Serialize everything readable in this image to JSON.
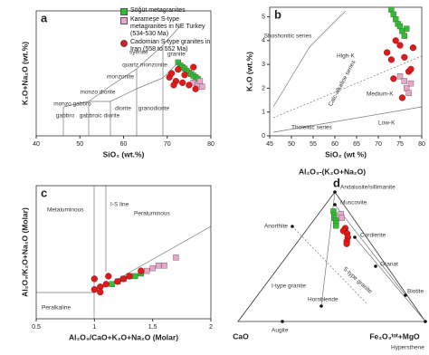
{
  "chart_data": [
    {
      "type": "scatter",
      "panel_label": "a",
      "x_label": "SiO₂ (wt.%)",
      "y_label": "K₂O+Na₂O (wt.%)",
      "xlim": [
        40,
        80
      ],
      "xticks": [
        40,
        50,
        60,
        70,
        80
      ],
      "ylim": [
        0,
        16
      ],
      "legend": "upper right",
      "annotations": [
        "granite",
        "syenite",
        "quartz monzonite",
        "monzonite",
        "monzo diorite",
        "monzo gabbro",
        "gabbroic diorite",
        "gabbro",
        "diorite",
        "granodiorite"
      ],
      "series": [
        {
          "name": "Söğüt metagranites",
          "color": "#2fbf2f",
          "marker": "square",
          "x": [
            72.5,
            73,
            73.5,
            74,
            74.5,
            75,
            75.5,
            76,
            76.5,
            77
          ],
          "values": [
            9.4,
            9.0,
            8.8,
            8.6,
            8.3,
            8.1,
            7.9,
            7.7,
            7.5,
            7.3
          ]
        },
        {
          "name": "Karameşe S-type metagranites in NE Turkey (534-530 Ma)",
          "color": "#eaa6cc",
          "marker": "square",
          "x": [
            76,
            77,
            77.5,
            78
          ],
          "values": [
            6.8,
            6.6,
            7.0,
            6.3
          ]
        },
        {
          "name": "Cadomian S-type granites in Iran (558 to 552 Ma)",
          "color": "#e01a1a",
          "marker": "circle",
          "x": [
            70.5,
            71,
            72,
            72.5,
            73.5,
            74,
            75,
            76,
            76.5,
            71.5
          ],
          "values": [
            7.5,
            8.0,
            7.0,
            8.5,
            6.8,
            7.8,
            6.5,
            8.8,
            6.0,
            6.5
          ]
        }
      ]
    },
    {
      "type": "scatter",
      "panel_label": "b",
      "x_label": "SiO₂ (wt %)",
      "y_label": "K₂O (wt.%)",
      "xlim": [
        45,
        80
      ],
      "xticks": [
        45,
        50,
        55,
        60,
        65,
        70,
        75,
        80
      ],
      "ylim": [
        0,
        5.4
      ],
      "yticks": [
        0,
        1,
        2,
        3,
        4,
        5
      ],
      "annotations": [
        "Shoshonitic series",
        "High-K",
        "Calc-alkaline series",
        "Medium-K",
        "Tholeiitic series",
        "Low-K"
      ],
      "series": [
        {
          "color": "#2fbf2f",
          "marker": "square",
          "x": [
            73,
            73.5,
            74,
            74.5,
            75,
            75.5,
            76,
            76.5
          ],
          "values": [
            5.3,
            5.1,
            4.9,
            4.7,
            4.6,
            4.4,
            4.2,
            4.5
          ]
        },
        {
          "color": "#eaa6cc",
          "marker": "square",
          "x": [
            75,
            76,
            76.5,
            77,
            77.5
          ],
          "values": [
            2.5,
            2.3,
            2.0,
            1.8,
            2.2
          ]
        },
        {
          "color": "#e01a1a",
          "marker": "circle",
          "x": [
            72,
            73,
            74,
            75,
            76,
            77,
            78,
            73.5,
            75.5,
            77.5
          ],
          "values": [
            3.5,
            3.2,
            4.0,
            3.8,
            3.3,
            2.7,
            3.7,
            2.4,
            1.6,
            2.8
          ]
        }
      ]
    },
    {
      "type": "scatter",
      "panel_label": "c",
      "x_label": "Al₂O₃/CaO+K₂O+Na₂O (Molar)",
      "y_label": "Al₂O₃/K₂O+Na₂O (Molar)",
      "xlim": [
        0.5,
        2
      ],
      "xticks": [
        0.5,
        1,
        1.5,
        2
      ],
      "ylim": [
        0.5,
        3
      ],
      "annotations": [
        "Metaluminous",
        "Peraluminous",
        "Peralkaline",
        "I-S line"
      ],
      "series": [
        {
          "color": "#2fbf2f",
          "marker": "square",
          "x": [
            1.15,
            1.2,
            1.25,
            1.3,
            1.35,
            1.4
          ],
          "values": [
            1.15,
            1.2,
            1.25,
            1.3,
            1.3,
            1.35
          ]
        },
        {
          "color": "#eaa6cc",
          "marker": "square",
          "x": [
            1.45,
            1.5,
            1.55,
            1.6,
            1.7
          ],
          "values": [
            1.4,
            1.45,
            1.5,
            1.5,
            1.65
          ]
        },
        {
          "color": "#e01a1a",
          "marker": "circle",
          "x": [
            1.0,
            1.05,
            1.1,
            1.12,
            1.2,
            1.25,
            1.3,
            1.4,
            1.0,
            1.05
          ],
          "values": [
            1.25,
            1.1,
            1.15,
            1.3,
            1.2,
            1.25,
            1.3,
            1.4,
            1.05,
            1.0
          ]
        }
      ]
    },
    {
      "type": "ternary",
      "panel_label": "d",
      "apex_top": "Al₂O₃-(K₂O+Na₂O)",
      "apex_left": "CaO",
      "apex_right": "Fe₂O₃ᵗᵒᵗ+MgO",
      "annotations": [
        "Andalusite/sillimanite",
        "Muscovite",
        "Cordierite",
        "Granat",
        "Biotite",
        "Hypersthene",
        "Hornblende",
        "Augite",
        "Anorthite",
        "S-type granite",
        "I-type granite"
      ],
      "series": [
        {
          "color": "#2fbf2f",
          "marker": "square",
          "values": [
            85,
            82,
            80,
            78,
            76,
            74
          ],
          "cao": [
            8,
            9,
            10,
            10,
            11,
            12
          ],
          "femgo": [
            7,
            9,
            10,
            12,
            13,
            14
          ]
        },
        {
          "color": "#eaa6cc",
          "marker": "square",
          "values": [
            83,
            80
          ],
          "cao": [
            5,
            6
          ],
          "femgo": [
            12,
            14
          ]
        },
        {
          "color": "#e01a1a",
          "marker": "circle",
          "values": [
            72,
            70,
            68,
            65,
            62,
            60
          ],
          "cao": [
            8,
            10,
            9,
            10,
            12,
            13
          ],
          "femgo": [
            20,
            20,
            23,
            25,
            26,
            27
          ]
        }
      ]
    }
  ]
}
